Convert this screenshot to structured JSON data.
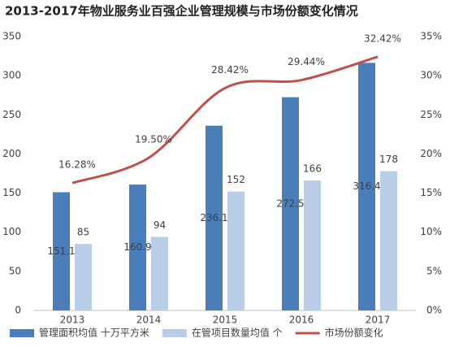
{
  "chart_data": {
    "type": "bar",
    "title": "2013-2017年物业服务业百强企业管理规模与市场份额变化情况",
    "categories": [
      "2013",
      "2014",
      "2015",
      "2016",
      "2017"
    ],
    "series": [
      {
        "name": "管理面积均值 十万平方米",
        "type": "bar",
        "color": "#4a7ebb",
        "values": [
          151.1,
          160.9,
          236.1,
          272.5,
          316.4
        ]
      },
      {
        "name": "在管项目数量均值 个",
        "type": "bar",
        "color": "#b9cde6",
        "values": [
          85,
          94,
          152,
          166,
          178
        ]
      },
      {
        "name": "市场份额变化",
        "type": "line",
        "axis": "y2",
        "color": "#c0504d",
        "values": [
          16.28,
          19.5,
          28.42,
          29.44,
          32.42
        ],
        "value_labels": [
          "16.28%",
          "19.50%",
          "28.42%",
          "29.44%",
          "32.42%"
        ]
      }
    ],
    "ylim": [
      0,
      350
    ],
    "yticks": [
      0,
      50,
      100,
      150,
      200,
      250,
      300,
      350
    ],
    "y2lim": [
      0,
      35
    ],
    "y2ticks": [
      {
        "value": 0,
        "label": "0%"
      },
      {
        "value": 5,
        "label": "5%"
      },
      {
        "value": 10,
        "label": "10%"
      },
      {
        "value": 15,
        "label": "15%"
      },
      {
        "value": 20,
        "label": "20%"
      },
      {
        "value": 25,
        "label": "25%"
      },
      {
        "value": 30,
        "label": "30%"
      },
      {
        "value": 35,
        "label": "35%"
      }
    ],
    "grid": false
  }
}
